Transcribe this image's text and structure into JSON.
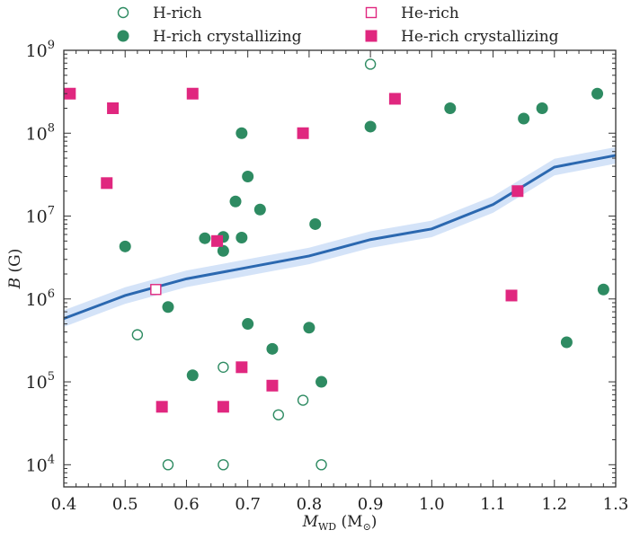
{
  "chart_data": {
    "type": "scatter",
    "xlabel": {
      "main": "M",
      "sub": "WD",
      "unit_open": " (M",
      "unit_sub": "⊙",
      "unit_close": ")"
    },
    "ylabel": {
      "main": "B",
      "unit": " (G)"
    },
    "xlim": [
      0.4,
      1.3
    ],
    "ylim": [
      5400,
      1000000000
    ],
    "yscale": "log",
    "xticks": [
      "0.4",
      "0.5",
      "0.6",
      "0.7",
      "0.8",
      "0.9",
      "1.0",
      "1.1",
      "1.2",
      "1.3"
    ],
    "yticks": [
      {
        "base": "10",
        "exp": "4"
      },
      {
        "base": "10",
        "exp": "5"
      },
      {
        "base": "10",
        "exp": "6"
      },
      {
        "base": "10",
        "exp": "7"
      },
      {
        "base": "10",
        "exp": "8"
      },
      {
        "base": "10",
        "exp": "9"
      }
    ],
    "grid": false,
    "legend_placement": "top (above plot)",
    "colors": {
      "green": "#2e8b62",
      "magenta": "#e0277f",
      "line": "#2b68b0",
      "band": "#cfe0f7"
    },
    "series": [
      {
        "name": "H-rich",
        "marker": "open-circle",
        "color": "#2e8b62",
        "points": [
          [
            0.9,
            680000000.0
          ],
          [
            0.52,
            370000.0
          ],
          [
            0.66,
            150000.0
          ],
          [
            0.79,
            60000.0
          ],
          [
            0.75,
            40000.0
          ],
          [
            0.57,
            10000.0
          ],
          [
            0.66,
            10000.0
          ],
          [
            0.82,
            10000.0
          ]
        ]
      },
      {
        "name": "He-rich",
        "marker": "open-square",
        "color": "#e0277f",
        "points": [
          [
            0.55,
            1300000.0
          ]
        ]
      },
      {
        "name": "H-rich crystallizing",
        "marker": "filled-circle",
        "color": "#2e8b62",
        "points": [
          [
            0.69,
            100000000.0
          ],
          [
            0.7,
            30000000.0
          ],
          [
            0.68,
            15000000.0
          ],
          [
            0.72,
            12000000.0
          ],
          [
            0.81,
            8000000.0
          ],
          [
            0.5,
            4300000.0
          ],
          [
            0.63,
            5400000.0
          ],
          [
            0.66,
            5600000.0
          ],
          [
            0.69,
            5500000.0
          ],
          [
            0.66,
            3800000.0
          ],
          [
            0.9,
            120000000.0
          ],
          [
            1.03,
            200000000.0
          ],
          [
            1.15,
            150000000.0
          ],
          [
            1.18,
            200000000.0
          ],
          [
            1.27,
            300000000.0
          ],
          [
            0.57,
            800000.0
          ],
          [
            0.7,
            500000.0
          ],
          [
            0.8,
            450000.0
          ],
          [
            0.74,
            250000.0
          ],
          [
            0.61,
            120000.0
          ],
          [
            0.82,
            100000.0
          ],
          [
            1.22,
            300000.0
          ],
          [
            1.28,
            1300000.0
          ]
        ]
      },
      {
        "name": "He-rich crystallizing",
        "marker": "filled-square",
        "color": "#e0277f",
        "points": [
          [
            0.41,
            300000000.0
          ],
          [
            0.48,
            200000000.0
          ],
          [
            0.47,
            25000000.0
          ],
          [
            0.61,
            300000000.0
          ],
          [
            0.65,
            5000000.0
          ],
          [
            0.79,
            100000000.0
          ],
          [
            0.94,
            260000000.0
          ],
          [
            1.14,
            20000000.0
          ],
          [
            1.13,
            1100000.0
          ],
          [
            0.69,
            150000.0
          ],
          [
            0.74,
            90000.0
          ],
          [
            0.56,
            50000.0
          ],
          [
            0.66,
            50000.0
          ]
        ]
      }
    ],
    "curve": {
      "color": "#2b68b0",
      "band_color": "#cfe0f7",
      "band_dex": 0.1,
      "points": [
        [
          0.4,
          580000.0
        ],
        [
          0.5,
          1100000.0
        ],
        [
          0.6,
          1750000.0
        ],
        [
          0.7,
          2400000.0
        ],
        [
          0.8,
          3300000.0
        ],
        [
          0.9,
          5200000.0
        ],
        [
          1.0,
          7000000.0
        ],
        [
          1.1,
          13800000.0
        ],
        [
          1.2,
          39000000.0
        ],
        [
          1.3,
          54000000.0
        ]
      ]
    }
  }
}
